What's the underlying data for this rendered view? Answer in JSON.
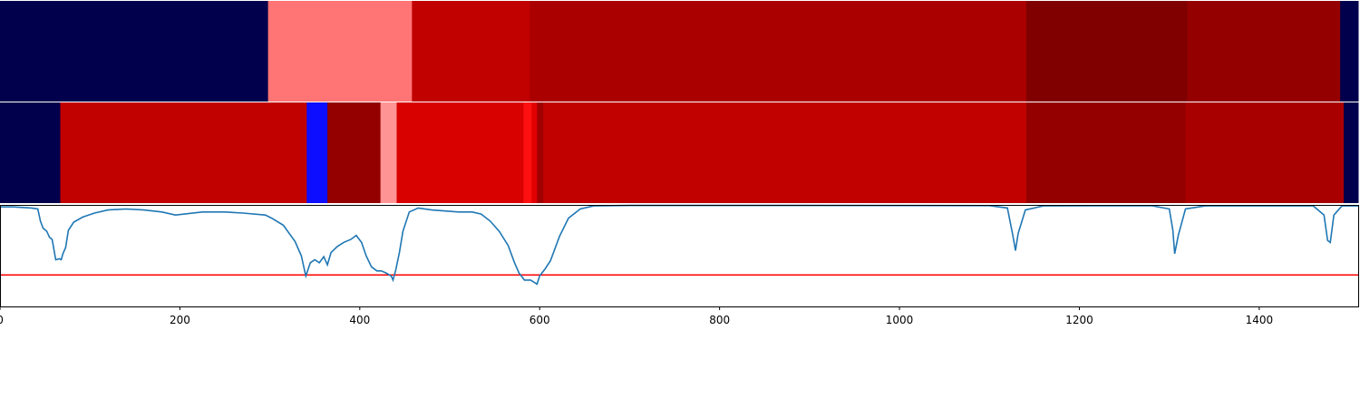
{
  "chart_data": {
    "type": "segmentation-strips-with-line",
    "x_axis": {
      "lim": [
        0,
        1510
      ],
      "ticks": [
        0,
        200,
        400,
        600,
        800,
        1000,
        1200,
        1400
      ],
      "tick_labels": [
        "0",
        "200",
        "400",
        "600",
        "800",
        "1000",
        "1200",
        "1400"
      ]
    },
    "strips": [
      {
        "segments": [
          {
            "start": 0,
            "end": 298,
            "color": "#00004c"
          },
          {
            "start": 298,
            "end": 458,
            "color": "#ff7474"
          },
          {
            "start": 458,
            "end": 589,
            "color": "#c10000"
          },
          {
            "start": 589,
            "end": 1141,
            "color": "#ab0000"
          },
          {
            "start": 1141,
            "end": 1320,
            "color": "#800000"
          },
          {
            "start": 1320,
            "end": 1490,
            "color": "#940000"
          },
          {
            "start": 1490,
            "end": 1510,
            "color": "#00004c"
          }
        ]
      },
      {
        "segments": [
          {
            "start": 0,
            "end": 67,
            "color": "#00004c"
          },
          {
            "start": 67,
            "end": 341,
            "color": "#c10000"
          },
          {
            "start": 341,
            "end": 364,
            "color": "#0d0dff"
          },
          {
            "start": 364,
            "end": 423,
            "color": "#940000"
          },
          {
            "start": 423,
            "end": 441,
            "color": "#ff9494"
          },
          {
            "start": 441,
            "end": 582,
            "color": "#d90000"
          },
          {
            "start": 582,
            "end": 591,
            "color": "#ff1010"
          },
          {
            "start": 591,
            "end": 597,
            "color": "#e20000"
          },
          {
            "start": 597,
            "end": 604,
            "color": "#a00000"
          },
          {
            "start": 604,
            "end": 1141,
            "color": "#c10000"
          },
          {
            "start": 1141,
            "end": 1318,
            "color": "#940000"
          },
          {
            "start": 1318,
            "end": 1494,
            "color": "#a80000"
          },
          {
            "start": 1494,
            "end": 1510,
            "color": "#00004c"
          }
        ]
      }
    ],
    "line": {
      "color": "#1f77b4",
      "ylim": [
        0,
        1
      ],
      "threshold": {
        "value": 0.31,
        "color": "#ff0000"
      },
      "points": [
        [
          0,
          0.98
        ],
        [
          15,
          0.98
        ],
        [
          35,
          0.97
        ],
        [
          42,
          0.96
        ],
        [
          45,
          0.84
        ],
        [
          48,
          0.77
        ],
        [
          52,
          0.74
        ],
        [
          55,
          0.68
        ],
        [
          58,
          0.66
        ],
        [
          62,
          0.46
        ],
        [
          66,
          0.47
        ],
        [
          68,
          0.46
        ],
        [
          70,
          0.52
        ],
        [
          73,
          0.58
        ],
        [
          76,
          0.75
        ],
        [
          82,
          0.83
        ],
        [
          92,
          0.88
        ],
        [
          105,
          0.92
        ],
        [
          120,
          0.95
        ],
        [
          140,
          0.96
        ],
        [
          160,
          0.95
        ],
        [
          180,
          0.93
        ],
        [
          195,
          0.9
        ],
        [
          205,
          0.91
        ],
        [
          225,
          0.93
        ],
        [
          250,
          0.93
        ],
        [
          270,
          0.92
        ],
        [
          295,
          0.9
        ],
        [
          302,
          0.87
        ],
        [
          315,
          0.8
        ],
        [
          328,
          0.64
        ],
        [
          335,
          0.5
        ],
        [
          340,
          0.3
        ],
        [
          345,
          0.43
        ],
        [
          350,
          0.46
        ],
        [
          355,
          0.43
        ],
        [
          360,
          0.49
        ],
        [
          364,
          0.41
        ],
        [
          368,
          0.53
        ],
        [
          375,
          0.59
        ],
        [
          382,
          0.63
        ],
        [
          390,
          0.66
        ],
        [
          396,
          0.7
        ],
        [
          402,
          0.63
        ],
        [
          407,
          0.5
        ],
        [
          413,
          0.39
        ],
        [
          419,
          0.35
        ],
        [
          424,
          0.35
        ],
        [
          429,
          0.33
        ],
        [
          435,
          0.3
        ],
        [
          437,
          0.26
        ],
        [
          440,
          0.36
        ],
        [
          444,
          0.53
        ],
        [
          448,
          0.74
        ],
        [
          455,
          0.93
        ],
        [
          465,
          0.97
        ],
        [
          480,
          0.95
        ],
        [
          495,
          0.94
        ],
        [
          510,
          0.93
        ],
        [
          525,
          0.93
        ],
        [
          535,
          0.91
        ],
        [
          545,
          0.84
        ],
        [
          555,
          0.74
        ],
        [
          565,
          0.6
        ],
        [
          572,
          0.43
        ],
        [
          577,
          0.33
        ],
        [
          583,
          0.26
        ],
        [
          590,
          0.26
        ],
        [
          597,
          0.22
        ],
        [
          600,
          0.3
        ],
        [
          606,
          0.37
        ],
        [
          612,
          0.45
        ],
        [
          622,
          0.69
        ],
        [
          632,
          0.87
        ],
        [
          645,
          0.96
        ],
        [
          660,
          0.99
        ],
        [
          700,
          0.995
        ],
        [
          900,
          0.995
        ],
        [
          1100,
          0.993
        ],
        [
          1120,
          0.97
        ],
        [
          1126,
          0.7
        ],
        [
          1129,
          0.55
        ],
        [
          1132,
          0.72
        ],
        [
          1140,
          0.95
        ],
        [
          1160,
          0.99
        ],
        [
          1280,
          0.993
        ],
        [
          1300,
          0.96
        ],
        [
          1304,
          0.75
        ],
        [
          1306,
          0.52
        ],
        [
          1310,
          0.7
        ],
        [
          1318,
          0.96
        ],
        [
          1340,
          0.99
        ],
        [
          1460,
          0.99
        ],
        [
          1472,
          0.9
        ],
        [
          1476,
          0.65
        ],
        [
          1479,
          0.63
        ],
        [
          1483,
          0.9
        ],
        [
          1492,
          0.99
        ],
        [
          1510,
          0.99
        ]
      ]
    }
  }
}
